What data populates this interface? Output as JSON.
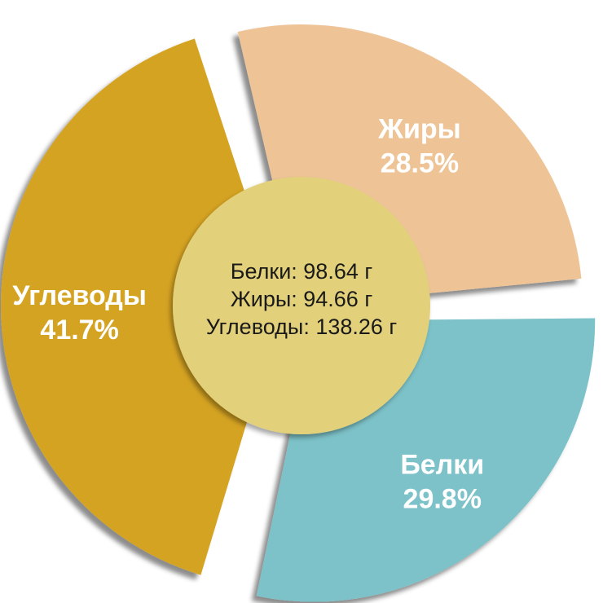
{
  "chart_data": {
    "type": "pie",
    "slices": [
      {
        "label": "Белки",
        "value": 29.8,
        "value_label": "29.8%",
        "color": "#7cc2c8",
        "explode": true
      },
      {
        "label": "Углеводы",
        "value": 41.7,
        "value_label": "41.7%",
        "color": "#d5a323",
        "explode": true
      },
      {
        "label": "Жиры",
        "value": 28.5,
        "value_label": "28.5%",
        "color": "#eec497",
        "explode": false
      }
    ],
    "center": {
      "color": "#e2d07a",
      "lines": [
        "Белки: 98.64 г",
        "Жиры: 94.66 г",
        "Углеводы: 138.26 г"
      ]
    },
    "legend": "none"
  }
}
